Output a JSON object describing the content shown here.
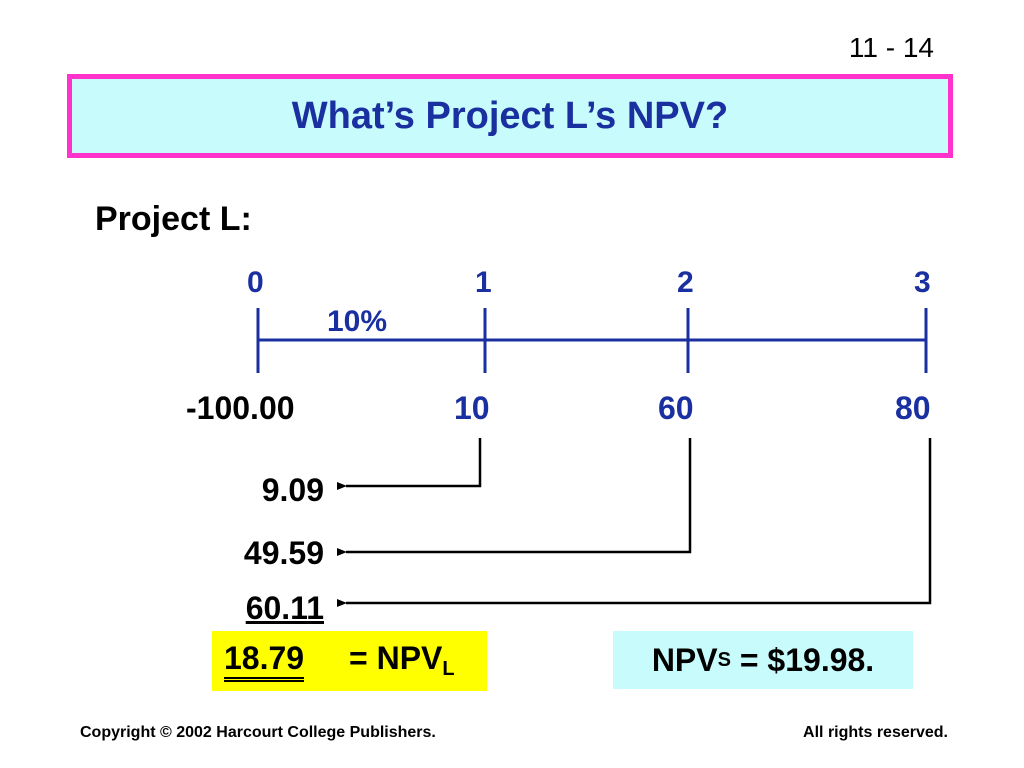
{
  "page_number": "11 - 14",
  "title": "What’s Project L’s NPV?",
  "project_label": "Project L:",
  "timeline": {
    "periods": [
      "0",
      "1",
      "2",
      "3"
    ],
    "rate": "10%",
    "cash_flows": [
      "-100.00",
      "10",
      "60",
      "80"
    ]
  },
  "present_values": [
    "9.09",
    "49.59",
    "60.11"
  ],
  "npv_l": {
    "total": "18.79",
    "label": "= NPV",
    "subscript": "L"
  },
  "npv_s": {
    "prefix": "NPV",
    "subscript": "S",
    "suffix": " = $19.98."
  },
  "footer": {
    "copyright": "Copyright © 2002 Harcourt College Publishers.",
    "rights": "All rights reserved."
  },
  "colors": {
    "title_border": "#ff33cc",
    "title_fill": "#c8fbfb",
    "blue_text": "#1a2fa0",
    "npv_highlight": "#ffff00"
  }
}
